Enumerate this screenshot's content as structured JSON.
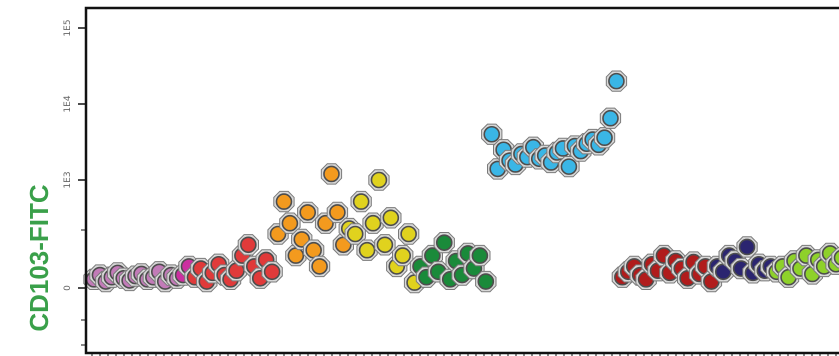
{
  "chart_data": {
    "type": "scatter",
    "title": "",
    "xlabel": "",
    "ylabel": "CD103-FITC",
    "y_scale": "biexponential",
    "y_ticks": [
      "1E5",
      "1E4",
      "1E3",
      "0"
    ],
    "grid": false,
    "legend": "none",
    "series": [
      {
        "color": "#c27bb8",
        "points": [
          [
            1,
            80
          ],
          [
            2,
            120
          ],
          [
            3,
            60
          ],
          [
            4,
            100
          ],
          [
            5,
            140
          ],
          [
            6,
            90
          ],
          [
            7,
            70
          ],
          [
            8,
            110
          ],
          [
            9,
            130
          ],
          [
            10,
            80
          ],
          [
            11,
            100
          ],
          [
            12,
            150
          ],
          [
            13,
            60
          ],
          [
            14,
            120
          ],
          [
            15,
            90
          ]
        ]
      },
      {
        "color": "#cc2fa0",
        "points": [
          [
            16,
            120
          ],
          [
            17,
            200
          ]
        ]
      },
      {
        "color": "#e03a3a",
        "points": [
          [
            18,
            100
          ],
          [
            19,
            180
          ],
          [
            20,
            60
          ],
          [
            21,
            140
          ],
          [
            22,
            220
          ],
          [
            23,
            120
          ],
          [
            24,
            80
          ],
          [
            25,
            160
          ],
          [
            26,
            300
          ],
          [
            27,
            400
          ],
          [
            28,
            200
          ],
          [
            29,
            90
          ],
          [
            30,
            260
          ],
          [
            31,
            150
          ]
        ]
      },
      {
        "color": "#f39a1e",
        "points": [
          [
            32,
            500
          ],
          [
            33,
            800
          ],
          [
            34,
            600
          ],
          [
            35,
            300
          ],
          [
            36,
            450
          ],
          [
            37,
            700
          ],
          [
            38,
            350
          ],
          [
            39,
            200
          ],
          [
            40,
            600
          ],
          [
            41,
            1200
          ],
          [
            42,
            700
          ],
          [
            43,
            400
          ]
        ]
      },
      {
        "color": "#e0d21e",
        "points": [
          [
            44,
            550
          ],
          [
            45,
            500
          ],
          [
            46,
            800
          ],
          [
            47,
            350
          ],
          [
            48,
            600
          ],
          [
            49,
            1000
          ],
          [
            50,
            400
          ],
          [
            51,
            650
          ],
          [
            52,
            200
          ],
          [
            53,
            300
          ],
          [
            54,
            500
          ],
          [
            55,
            50
          ]
        ]
      },
      {
        "color": "#1a8a3a",
        "points": [
          [
            56,
            200
          ],
          [
            57,
            100
          ],
          [
            58,
            300
          ],
          [
            59,
            150
          ],
          [
            60,
            420
          ],
          [
            61,
            80
          ],
          [
            62,
            250
          ],
          [
            63,
            120
          ],
          [
            64,
            320
          ],
          [
            65,
            180
          ],
          [
            66,
            300
          ],
          [
            67,
            60
          ]
        ]
      },
      {
        "color": "#3ab6e6",
        "points": [
          [
            68,
            4000
          ],
          [
            69,
            1400
          ],
          [
            70,
            2500
          ],
          [
            71,
            1800
          ],
          [
            72,
            1600
          ],
          [
            73,
            2200
          ],
          [
            74,
            2000
          ],
          [
            75,
            2700
          ],
          [
            76,
            1900
          ],
          [
            77,
            2100
          ],
          [
            78,
            1700
          ],
          [
            79,
            2300
          ],
          [
            80,
            2600
          ],
          [
            81,
            1500
          ],
          [
            82,
            2800
          ],
          [
            83,
            2400
          ],
          [
            84,
            3000
          ],
          [
            85,
            3400
          ],
          [
            86,
            2900
          ],
          [
            87,
            3600
          ],
          [
            88,
            6500
          ],
          [
            89,
            20000
          ]
        ]
      },
      {
        "color": "#b01c1c",
        "points": [
          [
            90,
            100
          ],
          [
            91,
            150
          ],
          [
            92,
            200
          ],
          [
            93,
            120
          ],
          [
            94,
            80
          ],
          [
            95,
            220
          ],
          [
            96,
            160
          ],
          [
            97,
            300
          ],
          [
            98,
            140
          ],
          [
            99,
            250
          ],
          [
            100,
            180
          ],
          [
            101,
            90
          ],
          [
            102,
            240
          ],
          [
            103,
            130
          ],
          [
            104,
            200
          ],
          [
            105,
            60
          ]
        ]
      },
      {
        "color": "#2b2570",
        "points": [
          [
            106,
            200
          ],
          [
            107,
            150
          ],
          [
            108,
            300
          ],
          [
            109,
            250
          ],
          [
            110,
            180
          ],
          [
            111,
            380
          ],
          [
            112,
            140
          ],
          [
            113,
            220
          ],
          [
            114,
            160
          ],
          [
            115,
            200
          ]
        ]
      },
      {
        "color": "#8ed12a",
        "points": [
          [
            116,
            150
          ],
          [
            117,
            200
          ],
          [
            118,
            100
          ],
          [
            119,
            250
          ],
          [
            120,
            180
          ],
          [
            121,
            300
          ],
          [
            122,
            130
          ],
          [
            123,
            260
          ],
          [
            124,
            200
          ],
          [
            125,
            320
          ],
          [
            126,
            220
          ],
          [
            127,
            280
          ]
        ]
      }
    ]
  }
}
